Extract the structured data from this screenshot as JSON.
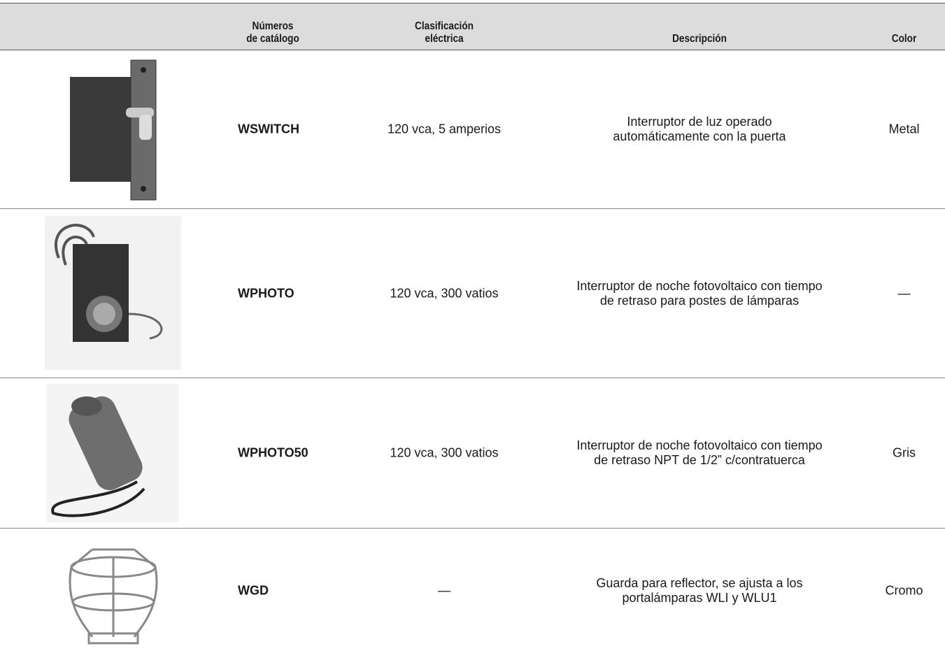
{
  "header": {
    "columns": [
      {
        "lines": [
          "Números",
          "de catálogo"
        ]
      },
      {
        "lines": [
          "Clasificación",
          "eléctrica"
        ]
      },
      {
        "lines": [
          "Descripción"
        ]
      },
      {
        "lines": [
          "Color"
        ]
      }
    ]
  },
  "table": {
    "rows": [
      {
        "catalog": "WSWITCH",
        "rating": "120 vca, 5 amperios",
        "description": [
          "Interruptor de luz operado",
          "automáticamente con la puerta"
        ],
        "color": "Metal"
      },
      {
        "catalog": "WPHOTO",
        "rating": "120 vca, 300 vatios",
        "description": [
          "Interruptor de noche fotovoltaico con tiempo",
          "de retraso para postes de lámparas"
        ],
        "color": "—"
      },
      {
        "catalog": "WPHOTO50",
        "rating": "120 vca, 300 vatios",
        "description": [
          "Interruptor de noche fotovoltaico con tiempo",
          "de retraso NPT de 1/2” c/contratuerca"
        ],
        "color": "Gris"
      },
      {
        "catalog": "WGD",
        "rating": "—",
        "description": [
          "Guarda para reflector, se ajusta a los",
          "portalámparas WLI y WLU1"
        ],
        "color": "Cromo"
      }
    ]
  }
}
